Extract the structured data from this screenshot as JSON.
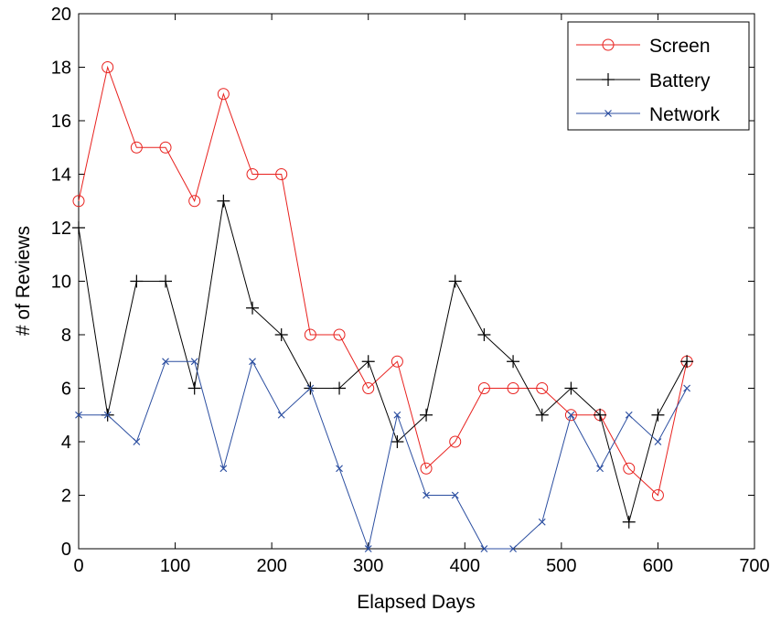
{
  "chart_data": {
    "type": "line",
    "xlabel": "Elapsed Days",
    "ylabel": "# of Reviews",
    "xlim": [
      0,
      700
    ],
    "ylim": [
      0,
      20
    ],
    "xticks": [
      "0",
      "100",
      "200",
      "300",
      "400",
      "500",
      "600",
      "700"
    ],
    "yticks": [
      "0",
      "2",
      "4",
      "6",
      "8",
      "10",
      "12",
      "14",
      "16",
      "18",
      "20"
    ],
    "grid": false,
    "legend_position": "top-right",
    "x": [
      0,
      30,
      60,
      90,
      120,
      150,
      180,
      210,
      240,
      270,
      300,
      330,
      360,
      390,
      420,
      450,
      480,
      510,
      540,
      570,
      600,
      630
    ],
    "series": [
      {
        "name": "Screen",
        "color": "#e8211e",
        "marker": "circle",
        "values": [
          13,
          18,
          15,
          15,
          13,
          17,
          14,
          14,
          8,
          8,
          6,
          7,
          3,
          4,
          6,
          6,
          6,
          5,
          5,
          3,
          2,
          7
        ]
      },
      {
        "name": "Battery",
        "color": "#000000",
        "marker": "plus",
        "values": [
          12,
          5,
          10,
          10,
          6,
          13,
          9,
          8,
          6,
          6,
          7,
          4,
          5,
          10,
          8,
          7,
          5,
          6,
          5,
          1,
          5,
          7
        ]
      },
      {
        "name": "Network",
        "color": "#2b4ea0",
        "marker": "x",
        "values": [
          5,
          5,
          4,
          7,
          7,
          3,
          7,
          5,
          6,
          3,
          0,
          5,
          2,
          2,
          0,
          0,
          1,
          5,
          3,
          5,
          4,
          6
        ]
      }
    ]
  }
}
